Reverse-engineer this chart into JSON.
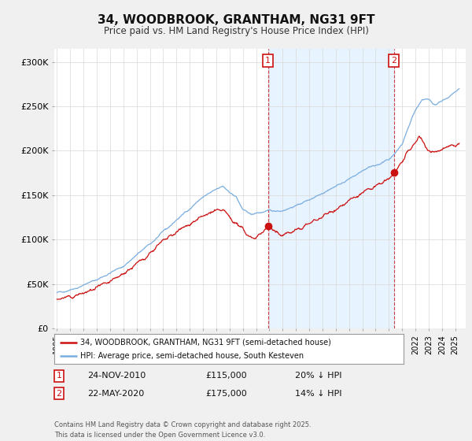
{
  "title": "34, WOODBROOK, GRANTHAM, NG31 9FT",
  "subtitle": "Price paid vs. HM Land Registry's House Price Index (HPI)",
  "ylabel_ticks": [
    "£0",
    "£50K",
    "£100K",
    "£150K",
    "£200K",
    "£250K",
    "£300K"
  ],
  "ytick_values": [
    0,
    50000,
    100000,
    150000,
    200000,
    250000,
    300000
  ],
  "ylim": [
    0,
    315000
  ],
  "xlim_start": 1994.8,
  "xlim_end": 2025.8,
  "hpi_color": "#7aade0",
  "price_color": "#cc1111",
  "marker1_x": 2010.9,
  "marker2_x": 2020.38,
  "marker1_price": 115000,
  "marker2_price": 175000,
  "marker1_date": "24-NOV-2010",
  "marker2_date": "22-MAY-2020",
  "marker1_hpi_diff": "20% ↓ HPI",
  "marker2_hpi_diff": "14% ↓ HPI",
  "legend_label_price": "34, WOODBROOK, GRANTHAM, NG31 9FT (semi-detached house)",
  "legend_label_hpi": "HPI: Average price, semi-detached house, South Kesteven",
  "footnote": "Contains HM Land Registry data © Crown copyright and database right 2025.\nThis data is licensed under the Open Government Licence v3.0.",
  "background_color": "#f0f0f0",
  "plot_bg_color": "#ffffff",
  "fill_color": "#ddeeff",
  "marker_box_color": "#cc1111"
}
